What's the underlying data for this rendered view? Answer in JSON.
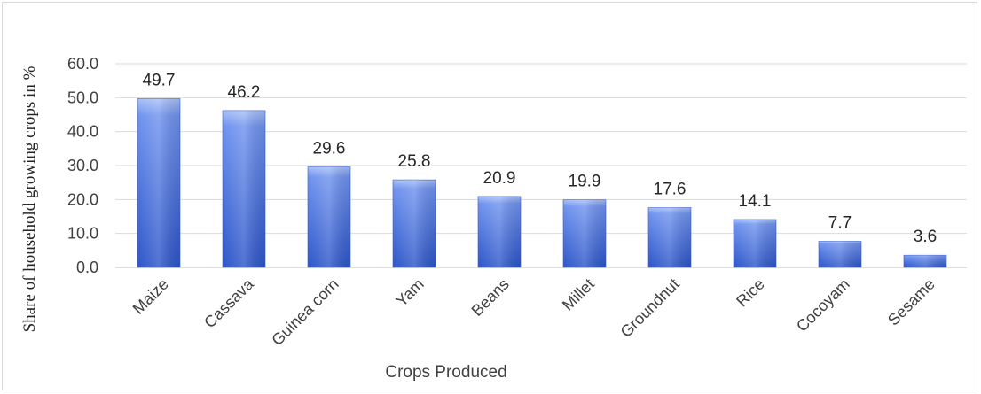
{
  "chart_data": {
    "type": "bar",
    "categories": [
      "Maize",
      "Cassava",
      "Guinea corn",
      "Yam",
      "Beans",
      "Millet",
      "Groundnut",
      "Rice",
      "Cocoyam",
      "Sesame"
    ],
    "values": [
      49.7,
      46.2,
      29.6,
      25.8,
      20.9,
      19.9,
      17.6,
      14.1,
      7.7,
      3.6
    ],
    "data_labels": [
      "49.7",
      "46.2",
      "29.6",
      "25.8",
      "20.9",
      "19.9",
      "17.6",
      "14.1",
      "7.7",
      "3.6"
    ],
    "yticks": [
      "0.0",
      "10.0",
      "20.0",
      "30.0",
      "40.0",
      "50.0",
      "60.0"
    ],
    "ylim": [
      0,
      60
    ],
    "xlabel": "Crops Produced",
    "ylabel": "Share of household growing crops in %",
    "grid": true,
    "legend": "none",
    "colors": {
      "bar_top": "#a9c1f7",
      "bar_mid": "#6f92ee",
      "bar_bottom": "#2c55c9",
      "gridline": "#d9d9d9",
      "axis": "#bfbfbf"
    }
  }
}
